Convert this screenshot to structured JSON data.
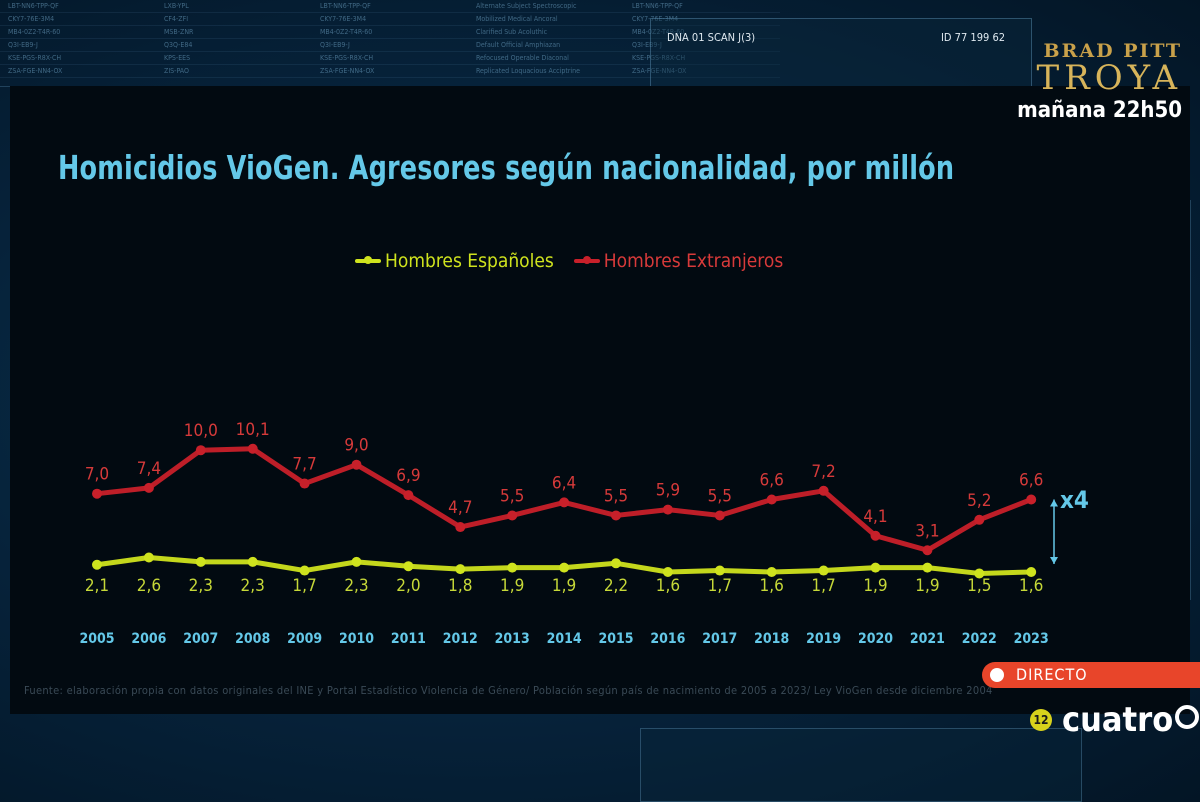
{
  "background_screen": {
    "rows": [
      [
        "LBT-NN6-TPP-QF",
        "LXB-YPL",
        "LBT-NN6-TPP-QF",
        "Alternate Subject Spectroscopic",
        "LBT-NN6-TPP-QF"
      ],
      [
        "CKY7-76E-3M4",
        "CF4-ZFI",
        "CKY7-76E-3M4",
        "Mobilized Medical Ancoral",
        "CKY7-76E-3M4"
      ],
      [
        "MB4-0Z2-T4R-60",
        "MSB-ZNR",
        "MB4-0Z2-T4R-60",
        "Clarified Sub Acoluthic",
        "MB4-0Z2-T4R-60"
      ],
      [
        "Q3I-EB9-J",
        "Q3Q-E84",
        "Q3I-EB9-J",
        "Default Official Amphiazan",
        "Q3I-EB9-J"
      ],
      [
        "KSE-PGS-R8X-CH",
        "KPS-EES",
        "KSE-PGS-R8X-CH",
        "Refocused Operable Diaconal",
        "KSE-PGS-R8X-CH"
      ],
      [
        "ZSA-FGE-NN4-OX",
        "ZIS-PAO",
        "ZSA-FGE-NN4-OX",
        "Replicated Loquacious Acciptrine",
        "ZSA-FGE-NN4-OX"
      ]
    ],
    "dna_label": "DNA 01 SCAN J(3)",
    "id_label": "ID 77 199 62"
  },
  "promo": {
    "actor": "BRAD PITT",
    "title": "TROYA",
    "schedule": "mañana 22h50"
  },
  "live_badge": "DIRECTO",
  "channel": {
    "rating": "12",
    "name": "cuatro"
  },
  "annotation": "x4",
  "source_note": "Fuente: elaboración propia con datos originales del INE y Portal Estadístico Violencia de Género/ Población según país de nacimiento de 2005 a 2023/ Ley VioGen desde diciembre 2004",
  "colors": {
    "spanish": "#cfe31e",
    "foreign": "#c8202a",
    "title": "#64c8e8"
  },
  "chart_data": {
    "type": "line",
    "title": "Homicidios VioGen. Agresores según nacionalidad, por millón",
    "categories": [
      "2005",
      "2006",
      "2007",
      "2008",
      "2009",
      "2010",
      "2011",
      "2012",
      "2013",
      "2014",
      "2015",
      "2016",
      "2017",
      "2018",
      "2019",
      "2020",
      "2021",
      "2022",
      "2023"
    ],
    "series": [
      {
        "name": "Hombres Españoles",
        "values": [
          2.1,
          2.6,
          2.3,
          2.3,
          1.7,
          2.3,
          2.0,
          1.8,
          1.9,
          1.9,
          2.2,
          1.6,
          1.7,
          1.6,
          1.7,
          1.9,
          1.9,
          1.5,
          1.6
        ],
        "labels": [
          "2,1",
          "2,6",
          "2,3",
          "2,3",
          "1,7",
          "2,3",
          "2,0",
          "1,8",
          "1,9",
          "1,9",
          "2,2",
          "1,6",
          "1,7",
          "1,6",
          "1,7",
          "1,9",
          "1,9",
          "1,5",
          "1,6"
        ]
      },
      {
        "name": "Hombres Extranjeros",
        "values": [
          7.0,
          7.4,
          10.0,
          10.1,
          7.7,
          9.0,
          6.9,
          4.7,
          5.5,
          6.4,
          5.5,
          5.9,
          5.5,
          6.6,
          7.2,
          4.1,
          3.1,
          5.2,
          6.6
        ],
        "labels": [
          "7,0",
          "7,4",
          "10,0",
          "10,1",
          "7,7",
          "9,0",
          "6,9",
          "4,7",
          "5,5",
          "6,4",
          "5,5",
          "5,9",
          "5,5",
          "6,6",
          "7,2",
          "4,1",
          "3,1",
          "5,2",
          "6,6"
        ]
      }
    ],
    "legend_position": "top-center",
    "grid": false
  }
}
